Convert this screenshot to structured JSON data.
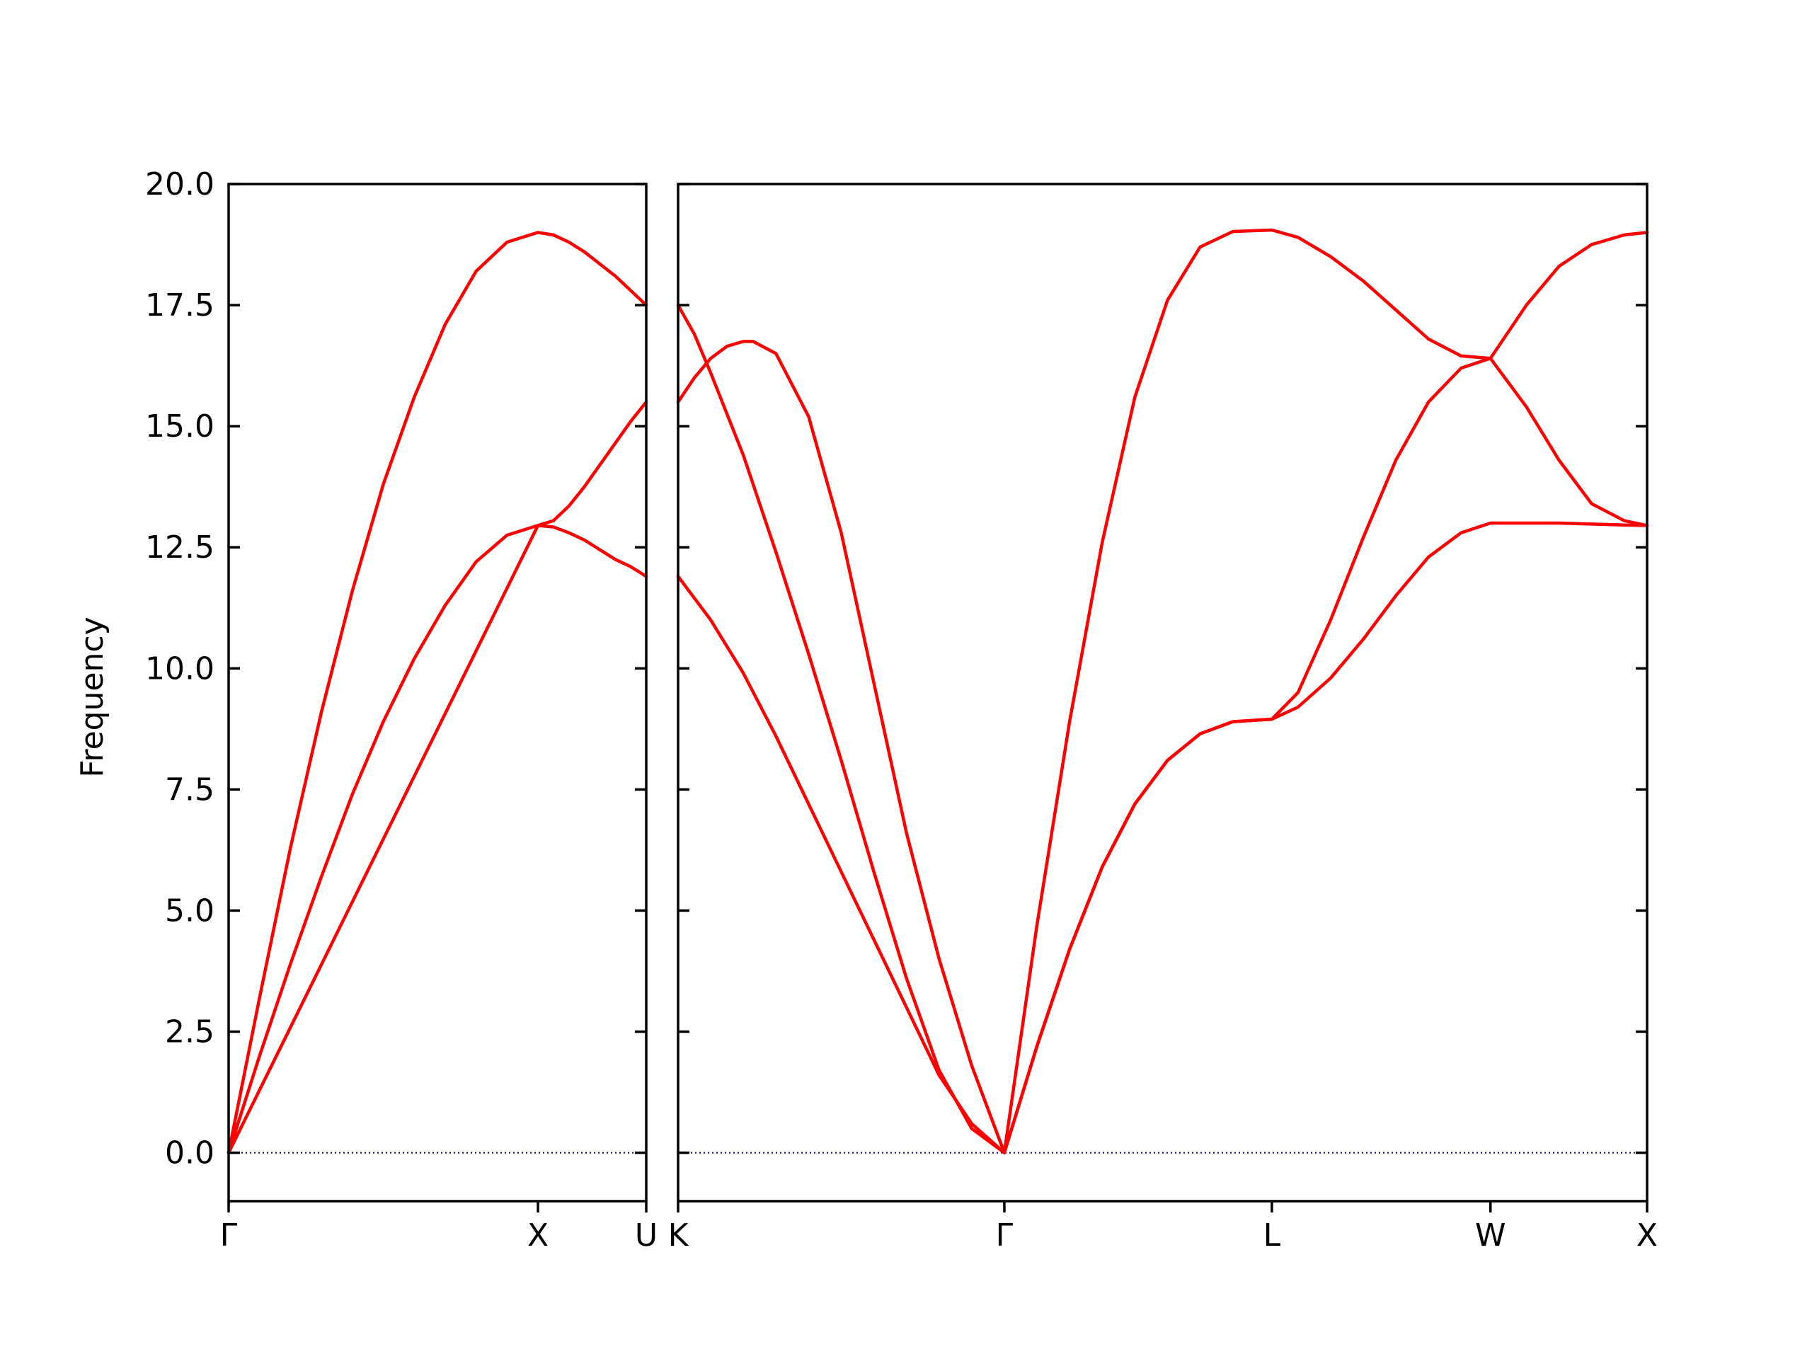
{
  "chart_data": {
    "type": "line",
    "ylabel": "Frequency",
    "ylim": [
      -1,
      20
    ],
    "yticks": [
      "0.0",
      "2.5",
      "5.0",
      "7.5",
      "10.0",
      "12.5",
      "15.0",
      "17.5",
      "20.0"
    ],
    "yvalues": [
      0,
      2.5,
      5,
      7.5,
      10,
      12.5,
      15,
      17.5,
      20
    ],
    "colors": {
      "bands": "#ff0000",
      "zero_line": "#00008b"
    },
    "grid": false,
    "panels": [
      {
        "name": "panel-left",
        "xlim": [
          0,
          1.35
        ],
        "xticks": [
          {
            "x": 0.0,
            "label": "Γ"
          },
          {
            "x": 1.0,
            "label": "X"
          },
          {
            "x": 1.35,
            "label": "U"
          }
        ],
        "series": [
          {
            "x": [
              0,
              0.1,
              0.2,
              0.3,
              0.4,
              0.5,
              0.6,
              0.7,
              0.8,
              0.9,
              1.0,
              1.05,
              1.1,
              1.15,
              1.2,
              1.25,
              1.3,
              1.35
            ],
            "y": [
              0,
              2.0,
              3.9,
              5.7,
              7.4,
              8.9,
              10.2,
              11.3,
              12.2,
              12.75,
              12.95,
              12.92,
              12.8,
              12.65,
              12.45,
              12.25,
              12.1,
              11.9
            ]
          },
          {
            "x": [
              0,
              1.0,
              1.05,
              1.1,
              1.15,
              1.2,
              1.25,
              1.3,
              1.35
            ],
            "y": [
              0,
              12.95,
              13.05,
              13.35,
              13.75,
              14.2,
              14.65,
              15.1,
              15.5
            ]
          },
          {
            "x": [
              0,
              0.1,
              0.2,
              0.3,
              0.4,
              0.5,
              0.6,
              0.7,
              0.8,
              0.9,
              1.0,
              1.05,
              1.1,
              1.15,
              1.2,
              1.25,
              1.3,
              1.35
            ],
            "y": [
              0,
              3.2,
              6.3,
              9.1,
              11.6,
              13.8,
              15.6,
              17.1,
              18.2,
              18.8,
              19.0,
              18.95,
              18.8,
              18.6,
              18.35,
              18.1,
              17.8,
              17.5
            ]
          }
        ]
      },
      {
        "name": "panel-right",
        "xlim": [
          0,
          2.97
        ],
        "xticks": [
          {
            "x": 0.0,
            "label": "K"
          },
          {
            "x": 1.0,
            "label": "Γ"
          },
          {
            "x": 1.82,
            "label": "L"
          },
          {
            "x": 2.49,
            "label": "W"
          },
          {
            "x": 2.97,
            "label": "X"
          }
        ],
        "series": [
          {
            "x": [
              0,
              0.1,
              0.2,
              0.3,
              0.4,
              0.5,
              0.6,
              0.7,
              0.8,
              0.9,
              1.0,
              1.1,
              1.2,
              1.3,
              1.4,
              1.5,
              1.6,
              1.7,
              1.82,
              1.9,
              2.0,
              2.1,
              2.2,
              2.3,
              2.4,
              2.49,
              2.6,
              2.7,
              2.8,
              2.9,
              2.97
            ],
            "y": [
              11.9,
              11.0,
              9.9,
              8.6,
              7.2,
              5.8,
              4.4,
              3.0,
              1.6,
              0.6,
              0,
              2.2,
              4.2,
              5.9,
              7.2,
              8.1,
              8.65,
              8.9,
              8.95,
              9.2,
              9.8,
              10.6,
              11.5,
              12.3,
              12.8,
              13.0,
              13.0,
              13.0,
              12.98,
              12.96,
              12.95
            ]
          },
          {
            "x": [
              0,
              0.05,
              0.1,
              0.2,
              0.3,
              0.4,
              0.5,
              0.6,
              0.7,
              0.8,
              0.9,
              1.0,
              1.1,
              1.2,
              1.3,
              1.4,
              1.5,
              1.6,
              1.7,
              1.82,
              1.9,
              2.0,
              2.1,
              2.2,
              2.3,
              2.4,
              2.49,
              2.6,
              2.7,
              2.8,
              2.9,
              2.97
            ],
            "y": [
              17.5,
              16.9,
              16.1,
              14.4,
              12.4,
              10.3,
              8.1,
              5.8,
              3.6,
              1.7,
              0.5,
              0,
              2.2,
              4.2,
              5.9,
              7.2,
              8.1,
              8.65,
              8.9,
              8.95,
              9.5,
              11.0,
              12.7,
              14.3,
              15.5,
              16.2,
              16.4,
              15.4,
              14.3,
              13.4,
              13.05,
              12.95
            ]
          },
          {
            "x": [
              0,
              0.05,
              0.1,
              0.15,
              0.2,
              0.23,
              0.3,
              0.4,
              0.5,
              0.6,
              0.7,
              0.8,
              0.9,
              1.0,
              1.1,
              1.2,
              1.3,
              1.4,
              1.5,
              1.6,
              1.7,
              1.82,
              1.9,
              2.0,
              2.1,
              2.2,
              2.3,
              2.4,
              2.49,
              2.6,
              2.7,
              2.8,
              2.9,
              2.97
            ],
            "y": [
              15.5,
              16.0,
              16.4,
              16.65,
              16.75,
              16.75,
              16.5,
              15.2,
              12.8,
              9.7,
              6.6,
              4.0,
              1.8,
              0,
              4.7,
              8.9,
              12.6,
              15.6,
              17.6,
              18.7,
              19.02,
              19.05,
              18.9,
              18.5,
              18.0,
              17.4,
              16.8,
              16.45,
              16.4,
              17.5,
              18.3,
              18.75,
              18.95,
              19.0
            ]
          }
        ]
      }
    ]
  }
}
